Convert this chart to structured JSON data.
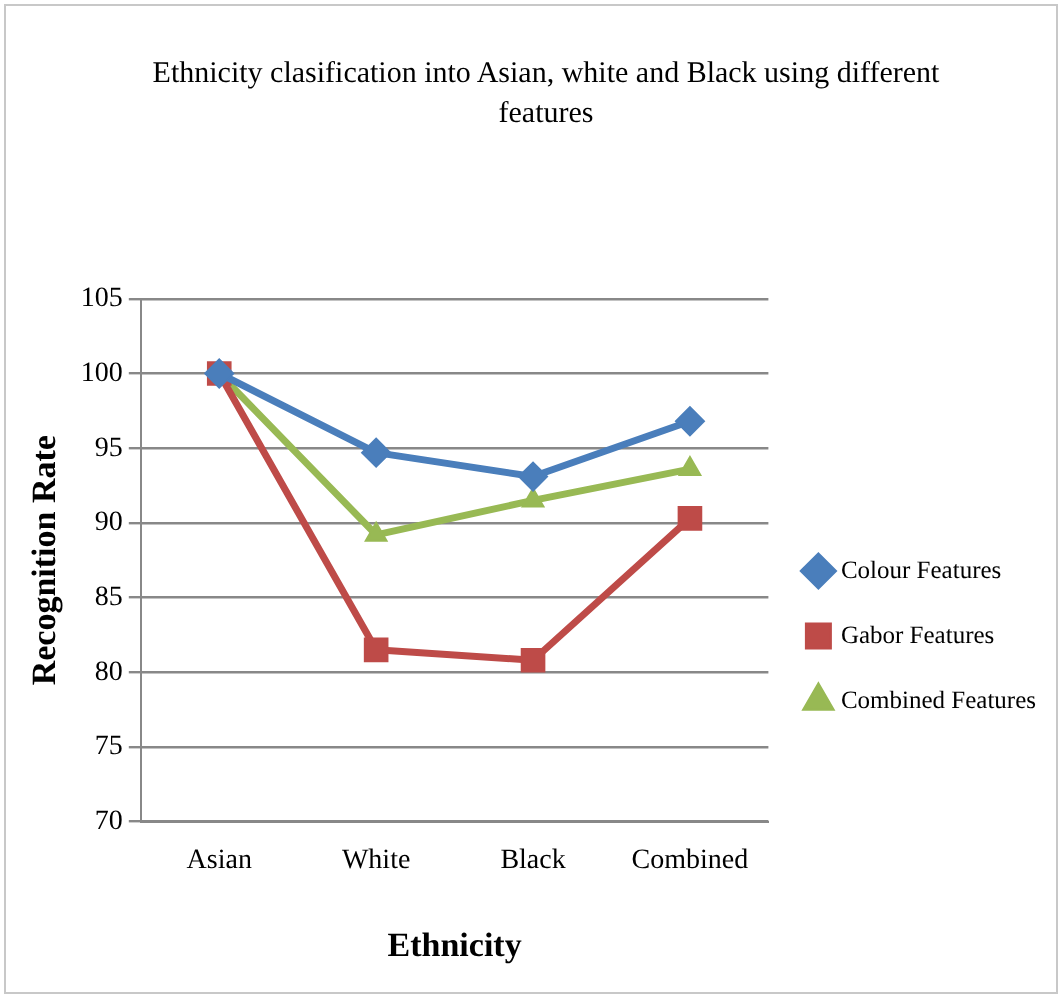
{
  "chart_data": {
    "type": "line",
    "title": "Ethnicity clasification into Asian, white and Black using different features",
    "xlabel": "Ethnicity",
    "ylabel": "Recognition Rate",
    "categories": [
      "Asian",
      "White",
      "Black",
      "Combined"
    ],
    "series": [
      {
        "name": "Colour Features",
        "color": "#4a7ebb",
        "marker": "diamond",
        "values": [
          100,
          94.7,
          93.1,
          96.8
        ]
      },
      {
        "name": "Gabor Features",
        "color": "#be4b48",
        "marker": "square",
        "values": [
          100,
          81.5,
          80.8,
          90.3
        ]
      },
      {
        "name": "Combined Features",
        "color": "#98b954",
        "marker": "triangle",
        "values": [
          100,
          89.2,
          91.5,
          93.6
        ]
      }
    ],
    "ylim": [
      70,
      105
    ],
    "yticks": [
      70,
      75,
      80,
      85,
      90,
      95,
      100,
      105
    ],
    "grid": "y",
    "legend": "right"
  }
}
